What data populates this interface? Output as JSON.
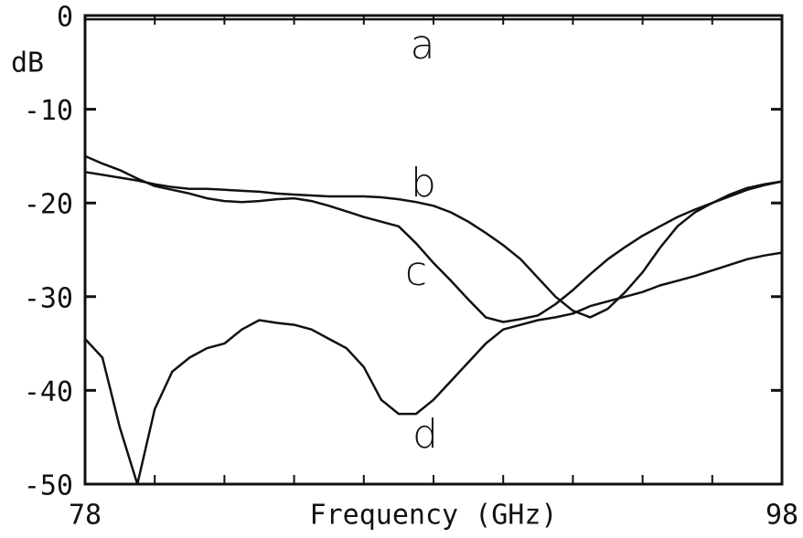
{
  "chart_data": {
    "type": "line",
    "x_label": "Frequency (GHz)",
    "y_label": "dB",
    "x": [
      78,
      78.5,
      79,
      79.5,
      80,
      80.5,
      81,
      81.5,
      82,
      82.5,
      83,
      83.5,
      84,
      84.5,
      85,
      85.5,
      86,
      86.5,
      87,
      87.5,
      88,
      88.5,
      89,
      89.5,
      90,
      90.5,
      91,
      91.5,
      92,
      92.5,
      93,
      93.5,
      94,
      94.5,
      95,
      95.5,
      96,
      96.5,
      97,
      97.5,
      98
    ],
    "series": [
      {
        "name": "a",
        "color": "#111111",
        "values": [
          -0.4,
          -0.4,
          -0.4,
          -0.4,
          -0.4,
          -0.4,
          -0.4,
          -0.4,
          -0.4,
          -0.4,
          -0.4,
          -0.4,
          -0.4,
          -0.4,
          -0.4,
          -0.4,
          -0.4,
          -0.4,
          -0.4,
          -0.4,
          -0.4,
          -0.4,
          -0.4,
          -0.4,
          -0.4,
          -0.4,
          -0.4,
          -0.4,
          -0.4,
          -0.4,
          -0.4,
          -0.4,
          -0.4,
          -0.4,
          -0.4,
          -0.4,
          -0.4,
          -0.4,
          -0.4,
          -0.4,
          -0.4
        ]
      },
      {
        "name": "b",
        "color": "#111111",
        "values": [
          -16.7,
          -17,
          -17.3,
          -17.6,
          -18,
          -18.3,
          -18.5,
          -18.5,
          -18.6,
          -18.7,
          -18.8,
          -19,
          -19.1,
          -19.2,
          -19.3,
          -19.3,
          -19.3,
          -19.4,
          -19.6,
          -19.9,
          -20.3,
          -21,
          -22,
          -23.2,
          -24.5,
          -26,
          -28,
          -30,
          -31.5,
          -32.2,
          -31.3,
          -29.5,
          -27.4,
          -24.8,
          -22.5,
          -21,
          -20,
          -19.1,
          -18.4,
          -18,
          -17.7
        ]
      },
      {
        "name": "c",
        "color": "#111111",
        "values": [
          -15,
          -15.8,
          -16.5,
          -17.4,
          -18.2,
          -18.6,
          -19,
          -19.5,
          -19.8,
          -19.9,
          -19.8,
          -19.6,
          -19.5,
          -19.8,
          -20.3,
          -20.9,
          -21.5,
          -22,
          -22.5,
          -24.3,
          -26.4,
          -28.3,
          -30.3,
          -32.2,
          -32.7,
          -32.4,
          -32,
          -30.8,
          -29.3,
          -27.6,
          -26,
          -24.7,
          -23.5,
          -22.5,
          -21.5,
          -20.7,
          -20,
          -19.3,
          -18.6,
          -18.1,
          -17.7
        ]
      },
      {
        "name": "d",
        "color": "#111111",
        "values": [
          -34.5,
          -36.5,
          -44,
          -50,
          -42,
          -38,
          -36.5,
          -35.5,
          -35,
          -33.5,
          -32.5,
          -32.8,
          -33,
          -33.5,
          -34.5,
          -35.5,
          -37.5,
          -41,
          -42.5,
          -42.5,
          -41,
          -39,
          -37,
          -35,
          -33.5,
          -33,
          -32.5,
          -32.2,
          -31.8,
          -31,
          -30.5,
          -30,
          -29.5,
          -28.8,
          -28.3,
          -27.8,
          -27.2,
          -26.6,
          -26,
          -25.6,
          -25.3
        ]
      }
    ],
    "xlim": [
      78,
      98
    ],
    "ylim": [
      -50,
      0
    ],
    "xticks": [
      78,
      98
    ],
    "xminorticks": [
      80,
      82,
      84,
      86,
      88,
      90,
      92,
      94,
      96
    ],
    "yticks": [
      0,
      -10,
      -20,
      -30,
      -40,
      -50
    ]
  }
}
